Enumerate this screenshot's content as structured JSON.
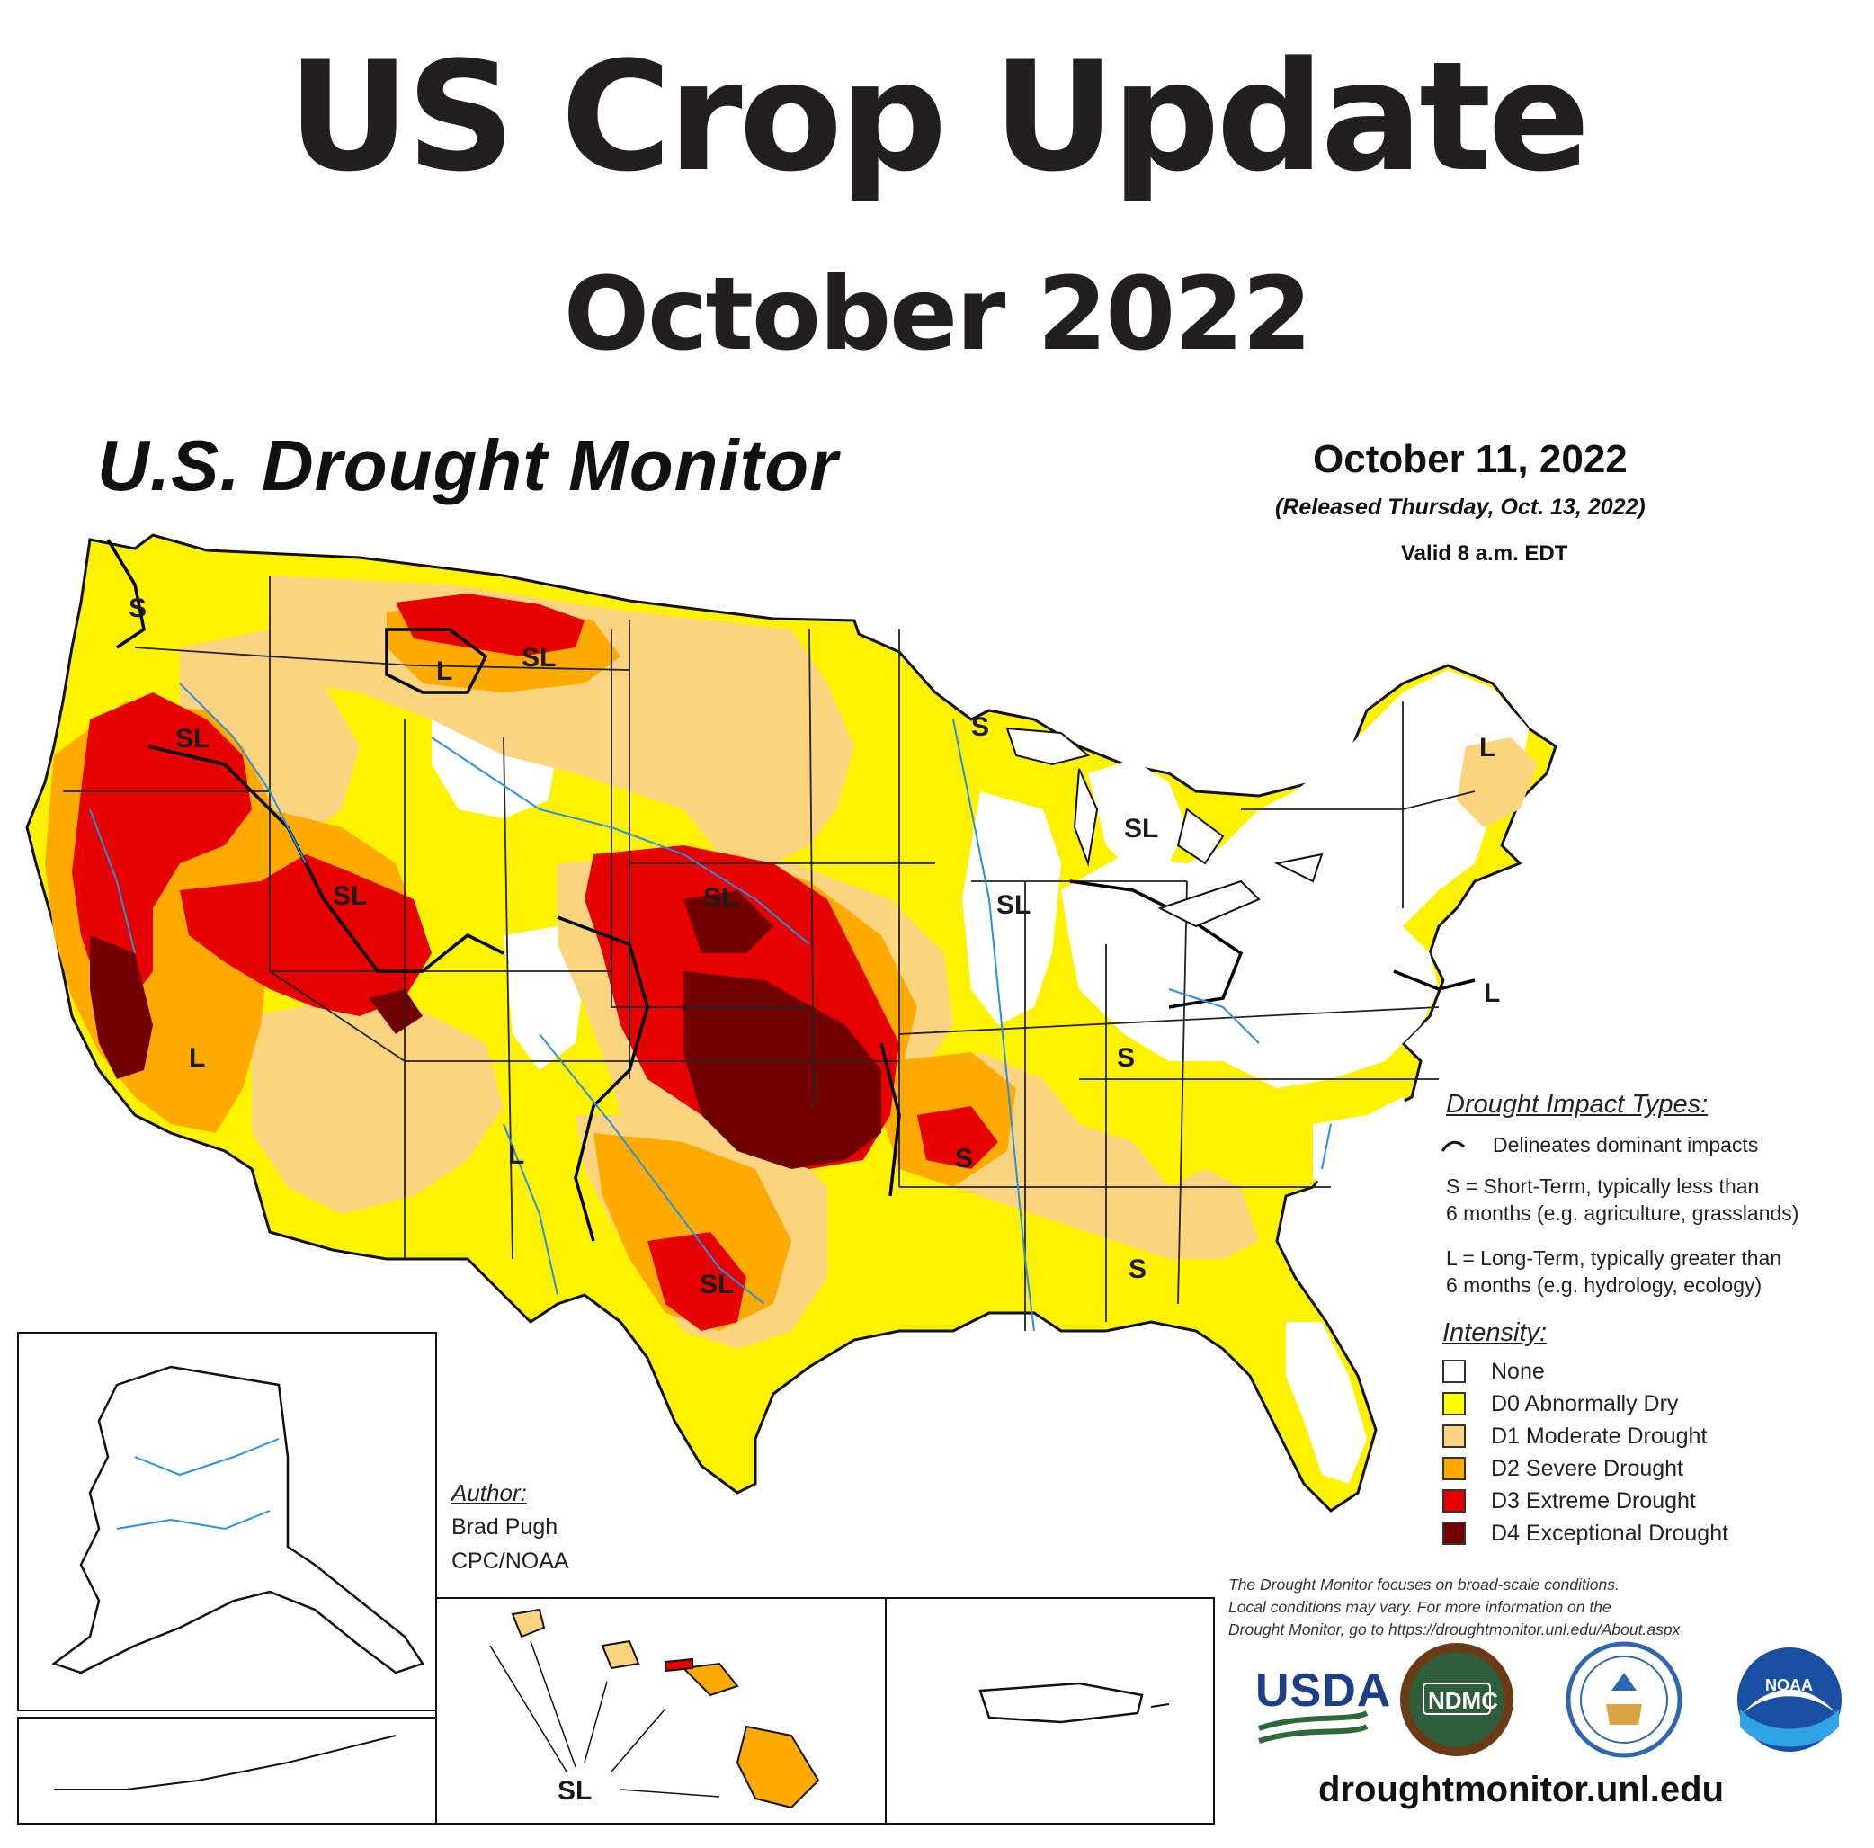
{
  "header": {
    "title": "US Crop Update",
    "subtitle": "October 2022"
  },
  "map": {
    "title": "U.S. Drought Monitor",
    "date": "October 11, 2022",
    "released": "(Released Thursday, Oct. 13, 2022)",
    "valid": "Valid 8 a.m. EDT",
    "impact_labels": [
      "S",
      "SL",
      "L",
      "SL",
      "SL",
      "SL",
      "SL",
      "L",
      "S",
      "L",
      "SL",
      "L",
      "S",
      "S",
      "L",
      "SL",
      "S",
      "L",
      "SL",
      "SL"
    ]
  },
  "legend": {
    "impact_heading": "Drought Impact Types:",
    "delineates": "Delineates dominant impacts",
    "short_term_1": "S = Short-Term, typically less than",
    "short_term_2": "6 months (e.g. agriculture, grasslands)",
    "long_term_1": "L = Long-Term, typically greater than",
    "long_term_2": "6 months (e.g. hydrology, ecology)",
    "intensity_heading": "Intensity:",
    "intensity": [
      {
        "label": "None",
        "color": "#ffffff"
      },
      {
        "label": "D0 Abnormally Dry",
        "color": "#ffff00"
      },
      {
        "label": "D1 Moderate Drought",
        "color": "#fcd37f"
      },
      {
        "label": "D2 Severe Drought",
        "color": "#ffaa00"
      },
      {
        "label": "D3 Extreme Drought",
        "color": "#e60000"
      },
      {
        "label": "D4 Exceptional Drought",
        "color": "#730000"
      }
    ]
  },
  "author": {
    "heading": "Author:",
    "name": "Brad Pugh",
    "org": "CPC/NOAA"
  },
  "disclaimer": {
    "line1": "The Drought Monitor focuses on broad-scale conditions.",
    "line2": "Local conditions may vary. For more information on the",
    "line3": "Drought Monitor, go to https://droughtmonitor.unl.edu/About.aspx"
  },
  "logos": {
    "usda": "USDA",
    "ndmc": "NDMC",
    "noaa": "NOAA"
  },
  "footer_url": "droughtmonitor.unl.edu"
}
